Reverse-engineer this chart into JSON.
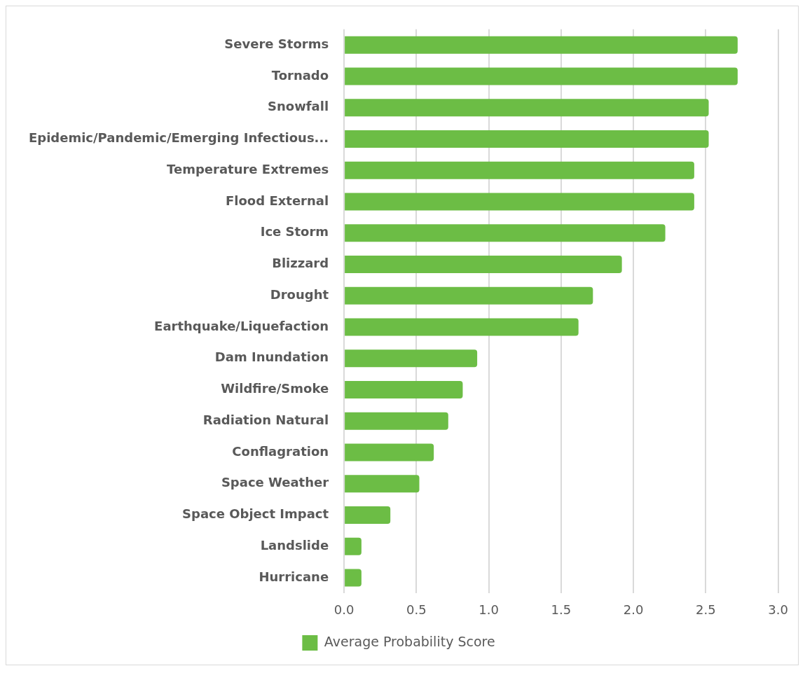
{
  "chart_data": {
    "type": "bar",
    "orientation": "horizontal",
    "categories": [
      "Severe Storms",
      "Tornado",
      "Snowfall",
      "Epidemic/Pandemic/Emerging Infectious...",
      "Temperature Extremes",
      "Flood External",
      "Ice Storm",
      "Blizzard",
      "Drought",
      "Earthquake/Liquefaction",
      "Dam Inundation",
      "Wildfire/Smoke",
      "Radiation Natural",
      "Conflagration",
      "Space Weather",
      "Space Object Impact",
      "Landslide",
      "Hurricane"
    ],
    "series": [
      {
        "name": "Average Probability Score",
        "color": "#6cbd45",
        "values": [
          2.72,
          2.72,
          2.52,
          2.52,
          2.42,
          2.42,
          2.22,
          1.92,
          1.72,
          1.62,
          0.92,
          0.82,
          0.72,
          0.62,
          0.52,
          0.32,
          0.12,
          0.12
        ]
      }
    ],
    "xlim": [
      0,
      3
    ],
    "xticks": [
      {
        "value": 0,
        "label": "0.0"
      },
      {
        "value": 0.5,
        "label": "0.5"
      },
      {
        "value": 1,
        "label": "1.0"
      },
      {
        "value": 1.5,
        "label": "1.5"
      },
      {
        "value": 2,
        "label": "2.0"
      },
      {
        "value": 2.5,
        "label": "2.5"
      },
      {
        "value": 3,
        "label": "3.0"
      }
    ],
    "grid": "x",
    "legend": "bottom"
  }
}
